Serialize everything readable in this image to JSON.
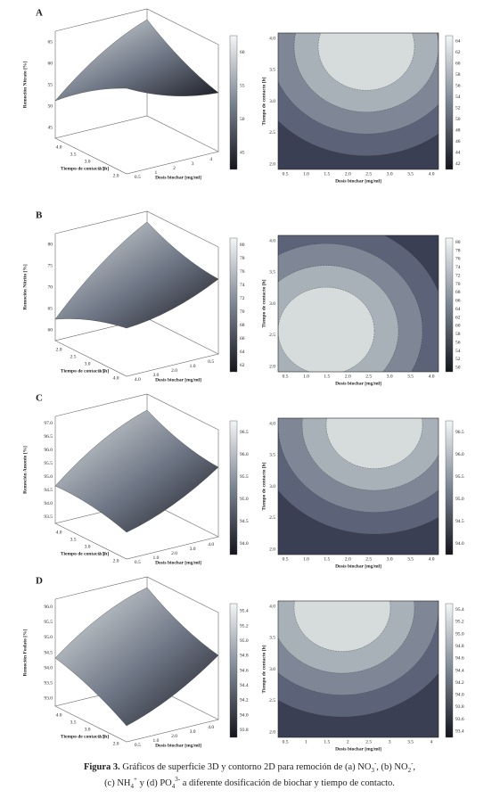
{
  "panels": [
    {
      "label": "A",
      "surface": {
        "z_label": "Remoción Nitrato [%]",
        "zticks": [
          "45",
          "50",
          "55",
          "60",
          "65"
        ],
        "x_label": "Tiempo de contacto [h]",
        "xticks": [
          "4.0",
          "3.5",
          "3.0",
          "2.5",
          "2.0"
        ],
        "y_label": "Dosis biochar [mg/ml]",
        "yticks": [
          "0.5",
          "1",
          "2",
          "3",
          "4"
        ],
        "colorbar": [
          "60",
          "55",
          "50",
          "45"
        ]
      },
      "contour": {
        "x_label": "Dosis biochar [mg/ml]",
        "xticks": [
          "0.5",
          "1.0",
          "1.5",
          "2.0",
          "2.5",
          "3.0",
          "3.5",
          "4.0"
        ],
        "y_label": "Tiempo de contacto [h]",
        "yticks": [
          "2.0",
          "2.5",
          "3.0",
          "3.5",
          "4.0"
        ],
        "colorbar": [
          "64",
          "62",
          "60",
          "58",
          "56",
          "54",
          "52",
          "50",
          "48",
          "46",
          "44",
          "42"
        ]
      }
    },
    {
      "label": "B",
      "surface": {
        "z_label": "Remoción Nitrito [%]",
        "zticks": [
          "60",
          "65",
          "70",
          "75",
          "80"
        ],
        "x_label": "Tiempo de contacto [h]",
        "xticks": [
          "2.0",
          "2.5",
          "3.0",
          "3.5",
          "4.0"
        ],
        "y_label": "Dosis biochar [mg/ml]",
        "yticks": [
          "4.0",
          "3.0",
          "2.0",
          "1.0",
          "0.5"
        ],
        "colorbar": [
          "80",
          "78",
          "76",
          "74",
          "72",
          "70",
          "68",
          "66",
          "64",
          "62"
        ]
      },
      "contour": {
        "x_label": "Dosis biochar [mg/ml]",
        "xticks": [
          "0.5",
          "1.0",
          "1.5",
          "2.0",
          "2.5",
          "3.0",
          "3.5",
          "4.0"
        ],
        "y_label": "Tiempo de contacto [h]",
        "yticks": [
          "2.0",
          "2.5",
          "3.0",
          "3.5",
          "4.0"
        ],
        "colorbar": [
          "80",
          "78",
          "76",
          "74",
          "72",
          "70",
          "68",
          "66",
          "64",
          "62",
          "60",
          "58",
          "56",
          "54",
          "52",
          "50"
        ]
      }
    },
    {
      "label": "C",
      "surface": {
        "z_label": "Remoción Amonio [%]",
        "zticks": [
          "93.5",
          "94.0",
          "94.5",
          "95.0",
          "95.5",
          "96.0",
          "96.5",
          "97.0"
        ],
        "x_label": "Tiempo de contacto [h]",
        "xticks": [
          "4.0",
          "3.5",
          "3.0",
          "2.5",
          "2.0"
        ],
        "y_label": "Dosis biochar [mg/ml]",
        "yticks": [
          "0.5",
          "1.0",
          "2.0",
          "3.0",
          "4.0"
        ],
        "colorbar": [
          "96.5",
          "96.0",
          "95.5",
          "95.0",
          "94.5",
          "94.0"
        ]
      },
      "contour": {
        "x_label": "Dosis biochar [mg/ml]",
        "xticks": [
          "0.5",
          "1.0",
          "1.5",
          "2.0",
          "2.5",
          "3.0",
          "3.5",
          "4.0"
        ],
        "y_label": "Tiempo de contacto [h]",
        "yticks": [
          "2.0",
          "2.5",
          "3.0",
          "3.5",
          "4.0"
        ],
        "colorbar": [
          "96.5",
          "96.0",
          "95.5",
          "95.0",
          "94.5",
          "94.0"
        ]
      }
    },
    {
      "label": "D",
      "surface": {
        "z_label": "Remoción Fosfato [%]",
        "zticks": [
          "93.0",
          "93.5",
          "94.0",
          "94.5",
          "95.0",
          "95.5",
          "96.0"
        ],
        "x_label": "Tiempo de contacto [h]",
        "xticks": [
          "4.0",
          "3.5",
          "3.0",
          "2.5",
          "2.0"
        ],
        "y_label": "Dosis biochar [mg/ml]",
        "yticks": [
          "0.5",
          "1.0",
          "2.0",
          "3.0",
          "4.0"
        ],
        "colorbar": [
          "95.4",
          "95.2",
          "95.0",
          "94.8",
          "94.6",
          "94.4",
          "94.2",
          "94.0",
          "93.8"
        ]
      },
      "contour": {
        "x_label": "Dosis biochar [mg/ml]",
        "xticks": [
          "0.5",
          "1",
          "1.5",
          "2",
          "2.5",
          "3",
          "3.5",
          "4"
        ],
        "y_label": "Tiempo de contacto [h]",
        "yticks": [
          "2.0",
          "2.5",
          "3.0",
          "3.5",
          "4.0"
        ],
        "colorbar": [
          "95.4",
          "95.2",
          "95.0",
          "94.8",
          "94.6",
          "94.4",
          "94.2",
          "94.0",
          "93.8",
          "93.6",
          "93.4"
        ]
      }
    }
  ],
  "caption": {
    "label": "Figura 3.",
    "parts": [
      " Gráficos de superficie 3D y contorno 2D para remoción de (a) NO",
      "3",
      "-",
      ", (b) NO",
      "2",
      "-",
      ",",
      "(c) NH",
      "4",
      "+",
      " y (d) PO",
      "4",
      "3-",
      " a diferente dosificación de biochar y tiempo de contacto."
    ]
  }
}
